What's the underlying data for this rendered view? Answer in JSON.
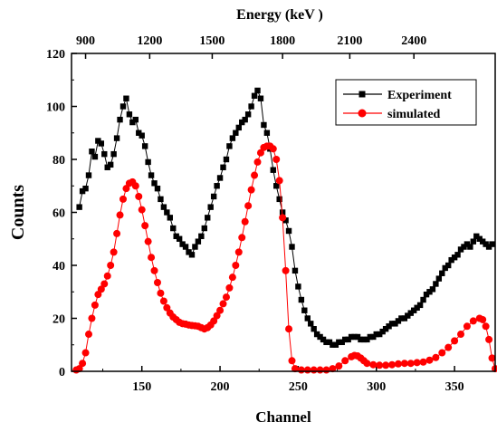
{
  "chart_data": {
    "type": "line",
    "xlabel": "Channel",
    "ylabel": "Counts",
    "top_axis_label": "Energy (keV )",
    "xlim": [
      105,
      376
    ],
    "ylim": [
      0,
      120
    ],
    "x_ticks": [
      150,
      200,
      250,
      300,
      350
    ],
    "y_ticks": [
      0,
      20,
      40,
      60,
      80,
      100,
      120
    ],
    "top_ticks": [
      {
        "label": "900",
        "channel": 114
      },
      {
        "label": "1200",
        "channel": 155
      },
      {
        "label": "1500",
        "channel": 195
      },
      {
        "label": "1800",
        "channel": 240
      },
      {
        "label": "2100",
        "channel": 283
      },
      {
        "label": "2400",
        "channel": 324
      }
    ],
    "legend_position": "top-right",
    "grid": false,
    "series": [
      {
        "name": "Experiment",
        "color": "#000000",
        "marker": "square",
        "points": [
          [
            110,
            62
          ],
          [
            112,
            68
          ],
          [
            114,
            69
          ],
          [
            116,
            74
          ],
          [
            118,
            83
          ],
          [
            120,
            81
          ],
          [
            122,
            87
          ],
          [
            124,
            86
          ],
          [
            126,
            82
          ],
          [
            128,
            77
          ],
          [
            130,
            78
          ],
          [
            132,
            82
          ],
          [
            134,
            88
          ],
          [
            136,
            95
          ],
          [
            138,
            100
          ],
          [
            140,
            103
          ],
          [
            142,
            97
          ],
          [
            144,
            94
          ],
          [
            146,
            95
          ],
          [
            148,
            90
          ],
          [
            150,
            89
          ],
          [
            152,
            85
          ],
          [
            154,
            79
          ],
          [
            156,
            74
          ],
          [
            158,
            71
          ],
          [
            160,
            69
          ],
          [
            162,
            65
          ],
          [
            164,
            62
          ],
          [
            166,
            60
          ],
          [
            168,
            58
          ],
          [
            170,
            54
          ],
          [
            172,
            51
          ],
          [
            174,
            50
          ],
          [
            176,
            48
          ],
          [
            178,
            47
          ],
          [
            180,
            45
          ],
          [
            182,
            44
          ],
          [
            184,
            47
          ],
          [
            186,
            49
          ],
          [
            188,
            51
          ],
          [
            190,
            54
          ],
          [
            192,
            58
          ],
          [
            194,
            62
          ],
          [
            196,
            66
          ],
          [
            198,
            70
          ],
          [
            200,
            73
          ],
          [
            202,
            77
          ],
          [
            204,
            80
          ],
          [
            206,
            85
          ],
          [
            208,
            88
          ],
          [
            210,
            90
          ],
          [
            212,
            92
          ],
          [
            214,
            94
          ],
          [
            216,
            95
          ],
          [
            218,
            97
          ],
          [
            220,
            100
          ],
          [
            222,
            104
          ],
          [
            224,
            106
          ],
          [
            226,
            103
          ],
          [
            228,
            93
          ],
          [
            230,
            90
          ],
          [
            232,
            84
          ],
          [
            234,
            76
          ],
          [
            236,
            70
          ],
          [
            238,
            65
          ],
          [
            240,
            60
          ],
          [
            242,
            57
          ],
          [
            244,
            53
          ],
          [
            246,
            47
          ],
          [
            248,
            38
          ],
          [
            250,
            32
          ],
          [
            252,
            27
          ],
          [
            254,
            23
          ],
          [
            256,
            20
          ],
          [
            258,
            18
          ],
          [
            260,
            16
          ],
          [
            262,
            14
          ],
          [
            264,
            13
          ],
          [
            266,
            12
          ],
          [
            268,
            11
          ],
          [
            270,
            11
          ],
          [
            272,
            10
          ],
          [
            274,
            10
          ],
          [
            276,
            11
          ],
          [
            278,
            11
          ],
          [
            280,
            12
          ],
          [
            282,
            12
          ],
          [
            284,
            13
          ],
          [
            286,
            13
          ],
          [
            288,
            13
          ],
          [
            290,
            12
          ],
          [
            292,
            12
          ],
          [
            294,
            12
          ],
          [
            296,
            13
          ],
          [
            298,
            13
          ],
          [
            300,
            14
          ],
          [
            302,
            14
          ],
          [
            304,
            15
          ],
          [
            306,
            16
          ],
          [
            308,
            17
          ],
          [
            310,
            18
          ],
          [
            312,
            18
          ],
          [
            314,
            19
          ],
          [
            316,
            20
          ],
          [
            318,
            20
          ],
          [
            320,
            21
          ],
          [
            322,
            22
          ],
          [
            324,
            23
          ],
          [
            326,
            24
          ],
          [
            328,
            25
          ],
          [
            330,
            27
          ],
          [
            332,
            29
          ],
          [
            334,
            30
          ],
          [
            336,
            31
          ],
          [
            338,
            33
          ],
          [
            340,
            35
          ],
          [
            342,
            37
          ],
          [
            344,
            39
          ],
          [
            346,
            40
          ],
          [
            348,
            42
          ],
          [
            350,
            43
          ],
          [
            352,
            44
          ],
          [
            354,
            46
          ],
          [
            356,
            47
          ],
          [
            358,
            48
          ],
          [
            360,
            47
          ],
          [
            362,
            49
          ],
          [
            364,
            51
          ],
          [
            366,
            50
          ],
          [
            368,
            49
          ],
          [
            370,
            48
          ],
          [
            372,
            47
          ],
          [
            374,
            48
          ]
        ]
      },
      {
        "name": "simulated",
        "color": "#ff0000",
        "marker": "circle",
        "points": [
          [
            108,
            0.5
          ],
          [
            110,
            1
          ],
          [
            112,
            3
          ],
          [
            114,
            7
          ],
          [
            116,
            14
          ],
          [
            118,
            20
          ],
          [
            120,
            25
          ],
          [
            122,
            29
          ],
          [
            124,
            31
          ],
          [
            126,
            33
          ],
          [
            128,
            36
          ],
          [
            130,
            40
          ],
          [
            132,
            45
          ],
          [
            134,
            52
          ],
          [
            136,
            59
          ],
          [
            138,
            65
          ],
          [
            140,
            69
          ],
          [
            142,
            71
          ],
          [
            144,
            71.5
          ],
          [
            146,
            70
          ],
          [
            148,
            66
          ],
          [
            150,
            61
          ],
          [
            152,
            55
          ],
          [
            154,
            49
          ],
          [
            156,
            43
          ],
          [
            158,
            38
          ],
          [
            160,
            33.5
          ],
          [
            162,
            29.5
          ],
          [
            164,
            26.5
          ],
          [
            166,
            24
          ],
          [
            168,
            22
          ],
          [
            170,
            20.5
          ],
          [
            172,
            19.5
          ],
          [
            174,
            18.5
          ],
          [
            176,
            18
          ],
          [
            178,
            17.8
          ],
          [
            180,
            17.5
          ],
          [
            182,
            17.3
          ],
          [
            184,
            17.2
          ],
          [
            186,
            17
          ],
          [
            188,
            16.5
          ],
          [
            190,
            16
          ],
          [
            192,
            16.5
          ],
          [
            194,
            17.5
          ],
          [
            196,
            19
          ],
          [
            198,
            21
          ],
          [
            200,
            23
          ],
          [
            202,
            25.5
          ],
          [
            204,
            28
          ],
          [
            206,
            31.5
          ],
          [
            208,
            35.5
          ],
          [
            210,
            40
          ],
          [
            212,
            45
          ],
          [
            214,
            50.5
          ],
          [
            216,
            56.5
          ],
          [
            218,
            62.5
          ],
          [
            220,
            68.5
          ],
          [
            222,
            74
          ],
          [
            224,
            79
          ],
          [
            226,
            82.5
          ],
          [
            228,
            84.5
          ],
          [
            230,
            85
          ],
          [
            232,
            85
          ],
          [
            234,
            84
          ],
          [
            236,
            80
          ],
          [
            238,
            72
          ],
          [
            240,
            58
          ],
          [
            242,
            38
          ],
          [
            244,
            16
          ],
          [
            246,
            4
          ],
          [
            248,
            1
          ],
          [
            252,
            0.5
          ],
          [
            256,
            0.5
          ],
          [
            260,
            0.5
          ],
          [
            264,
            0.5
          ],
          [
            268,
            0.5
          ],
          [
            272,
            1
          ],
          [
            276,
            2
          ],
          [
            280,
            4
          ],
          [
            284,
            5.5
          ],
          [
            286,
            6
          ],
          [
            288,
            5.8
          ],
          [
            290,
            5
          ],
          [
            292,
            4
          ],
          [
            294,
            3
          ],
          [
            298,
            2.5
          ],
          [
            302,
            2.3
          ],
          [
            306,
            2.3
          ],
          [
            310,
            2.5
          ],
          [
            314,
            2.8
          ],
          [
            318,
            3
          ],
          [
            322,
            3
          ],
          [
            326,
            3.3
          ],
          [
            330,
            3.5
          ],
          [
            334,
            4.2
          ],
          [
            338,
            5.2
          ],
          [
            342,
            7
          ],
          [
            346,
            9
          ],
          [
            350,
            11.5
          ],
          [
            354,
            14
          ],
          [
            358,
            17
          ],
          [
            362,
            19
          ],
          [
            366,
            20
          ],
          [
            368,
            19.5
          ],
          [
            370,
            17
          ],
          [
            372,
            12
          ],
          [
            374,
            5
          ],
          [
            376,
            1
          ]
        ]
      }
    ]
  }
}
